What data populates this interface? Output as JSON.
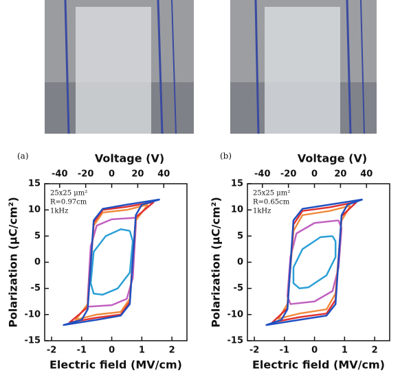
{
  "chart_data": [
    {
      "type": "line",
      "panel": "(a)",
      "xlabel": "Electric field (MV/cm)",
      "x2label": "Voltage (V)",
      "ylabel": "Polarization (μC/cm²)",
      "annotations": [
        "25x25 μm²",
        "R=0.97cm",
        "1kHz"
      ],
      "xlim": [
        -2.23,
        2.5
      ],
      "xticks": [
        -2,
        -1,
        0,
        1,
        2
      ],
      "x2lim": [
        -51.5,
        57.8
      ],
      "x2ticks": [
        -40,
        -20,
        0,
        20,
        40
      ],
      "ylim": [
        -15,
        15
      ],
      "yticks": [
        -15,
        -10,
        -5,
        0,
        5,
        10,
        15
      ],
      "series": [
        {
          "color": "#2a9fd6",
          "x": [
            0.6,
            0.3,
            -0.2,
            -0.6,
            -0.7,
            -0.6,
            -0.3,
            0.2,
            0.6,
            0.7,
            0.6
          ],
          "values": [
            6,
            6.3,
            5,
            2,
            -4,
            -6,
            -6.2,
            -5,
            -2,
            4,
            6
          ]
        },
        {
          "color": "#c060c0",
          "x": [
            0.8,
            0,
            -0.5,
            -0.7,
            -0.8,
            -0.8,
            0,
            0.5,
            0.7,
            0.8,
            0.8
          ],
          "values": [
            8.5,
            8.2,
            7,
            3,
            -7,
            -8.5,
            -8.2,
            -7,
            -3,
            7,
            8.5
          ]
        },
        {
          "color": "#f08a3c",
          "x": [
            1.2,
            0.5,
            -0.3,
            -0.6,
            -0.8,
            -1.2,
            -0.5,
            0.3,
            0.6,
            0.8,
            1.2
          ],
          "values": [
            11,
            10,
            9.5,
            7,
            -8,
            -11,
            -10,
            -9.5,
            -7,
            8,
            11
          ]
        },
        {
          "color": "#e03030",
          "x": [
            1.4,
            0.5,
            -0.3,
            -0.6,
            -0.8,
            -1.4,
            -0.5,
            0.3,
            0.6,
            0.8,
            1.4
          ],
          "values": [
            11.5,
            10.6,
            10,
            7.6,
            -8.6,
            -11.5,
            -10.6,
            -10,
            -7.6,
            8.6,
            11.5
          ]
        },
        {
          "color": "#2050c0",
          "x": [
            1.6,
            0.5,
            -0.3,
            -0.6,
            -0.8,
            -1.0,
            -1.6,
            -0.5,
            0.3,
            0.6,
            0.8,
            1.0,
            1.6
          ],
          "values": [
            12,
            11,
            10.2,
            8,
            -9,
            -11,
            -12,
            -11,
            -10.2,
            -8,
            9,
            11,
            12
          ]
        }
      ]
    },
    {
      "type": "line",
      "panel": "(b)",
      "xlabel": "Electric field (MV/cm)",
      "x2label": "Voltage (V)",
      "ylabel": "Polarization (μC/cm²)",
      "annotations": [
        "25x25 μm²",
        "R=0.65cm",
        "1kHz"
      ],
      "xlim": [
        -2.23,
        2.5
      ],
      "xticks": [
        -2,
        -1,
        0,
        1,
        2
      ],
      "x2lim": [
        -51.5,
        57.8
      ],
      "x2ticks": [
        -40,
        -20,
        0,
        20,
        40
      ],
      "ylim": [
        -15,
        15
      ],
      "yticks": [
        -15,
        -10,
        -5,
        0,
        5,
        10,
        15
      ],
      "series": [
        {
          "color": "#2a9fd6",
          "x": [
            0.6,
            0.2,
            -0.4,
            -0.7,
            -0.7,
            -0.5,
            -0.2,
            0.4,
            0.7,
            0.7,
            0.6
          ],
          "values": [
            5,
            4.8,
            2.5,
            -1,
            -4,
            -5,
            -4.8,
            -2.5,
            1,
            4,
            5
          ]
        },
        {
          "color": "#c060c0",
          "x": [
            0.8,
            0,
            -0.6,
            -0.8,
            -0.9,
            -0.8,
            0,
            0.6,
            0.8,
            0.9,
            0.8
          ],
          "values": [
            8,
            7.5,
            5.5,
            1,
            -6.5,
            -8,
            -7.5,
            -5.5,
            -1,
            6.5,
            8
          ]
        },
        {
          "color": "#f08a3c",
          "x": [
            1.2,
            0.5,
            -0.4,
            -0.7,
            -0.9,
            -1.2,
            -0.5,
            0.4,
            0.7,
            0.9,
            1.2
          ],
          "values": [
            10.8,
            9.8,
            9,
            6,
            -8,
            -10.8,
            -9.8,
            -9,
            -6,
            8,
            10.8
          ]
        },
        {
          "color": "#e03030",
          "x": [
            1.4,
            0.5,
            -0.4,
            -0.7,
            -0.9,
            -1.4,
            -0.5,
            0.4,
            0.7,
            0.9,
            1.4
          ],
          "values": [
            11.5,
            10.5,
            9.8,
            7.2,
            -8.8,
            -11.5,
            -10.5,
            -9.8,
            -7.2,
            8.8,
            11.5
          ]
        },
        {
          "color": "#2050c0",
          "x": [
            1.6,
            0.5,
            -0.4,
            -0.7,
            -0.9,
            -1.1,
            -1.6,
            -0.5,
            0.4,
            0.7,
            0.9,
            1.1,
            1.6
          ],
          "values": [
            12,
            11,
            10.2,
            8,
            -9,
            -11,
            -12,
            -11,
            -10.2,
            -8,
            9,
            11,
            12
          ]
        }
      ]
    }
  ]
}
